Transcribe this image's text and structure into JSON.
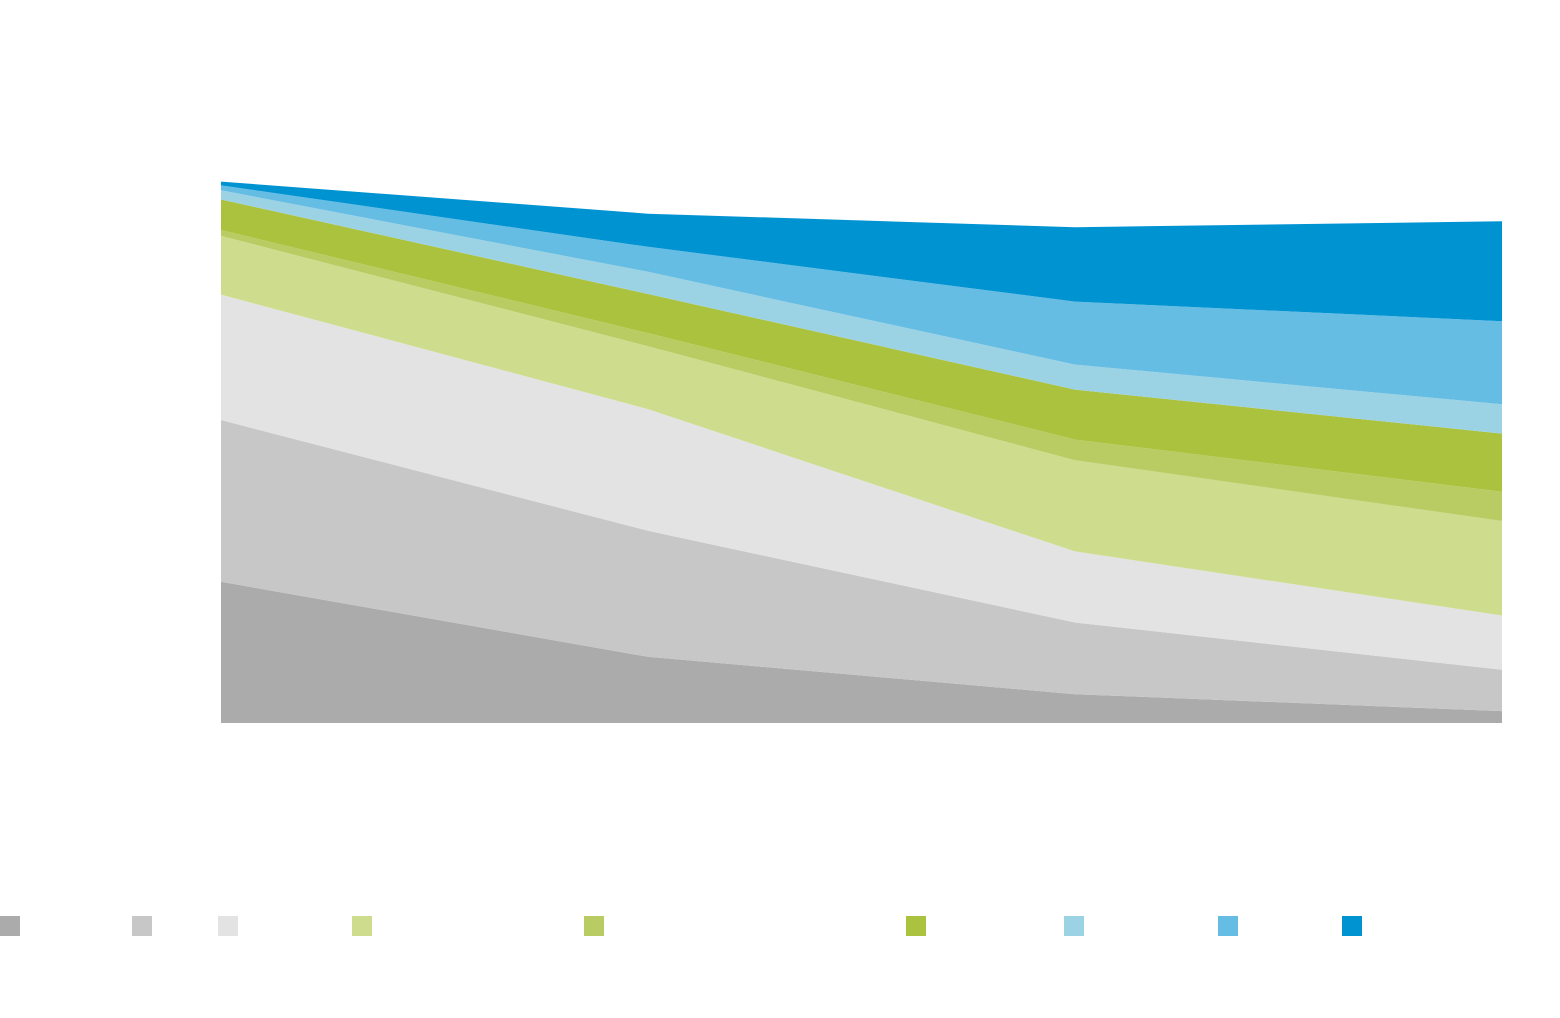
{
  "chart_data": {
    "type": "area",
    "stacked": true,
    "title": "",
    "xlabel": "",
    "ylabel": "",
    "x": [
      "",
      "",
      "",
      ""
    ],
    "ylim": [
      0,
      100
    ],
    "grid": false,
    "legend_placement": "bottom",
    "series": [
      {
        "color": "#ababab",
        "values": [
          26.0,
          12.2,
          5.3,
          2.2
        ]
      },
      {
        "color": "#c7c7c7",
        "values": [
          29.8,
          23.2,
          13.2,
          7.6
        ]
      },
      {
        "color": "#e3e3e3",
        "values": [
          23.1,
          22.4,
          13.1,
          10.0
        ]
      },
      {
        "color": "#cedc8e",
        "values": [
          10.8,
          11.6,
          16.8,
          17.4
        ]
      },
      {
        "color": "#b9cc63",
        "values": [
          1.1,
          2.4,
          3.8,
          5.4
        ]
      },
      {
        "color": "#abc23f",
        "values": [
          5.6,
          7.2,
          9.2,
          10.7
        ]
      },
      {
        "color": "#9bd3e5",
        "values": [
          1.7,
          4.1,
          4.6,
          5.4
        ]
      },
      {
        "color": "#66bde3",
        "values": [
          0.9,
          4.6,
          11.6,
          15.3
        ]
      },
      {
        "color": "#0093d2",
        "values": [
          0.7,
          6.1,
          13.7,
          18.4
        ]
      }
    ]
  }
}
